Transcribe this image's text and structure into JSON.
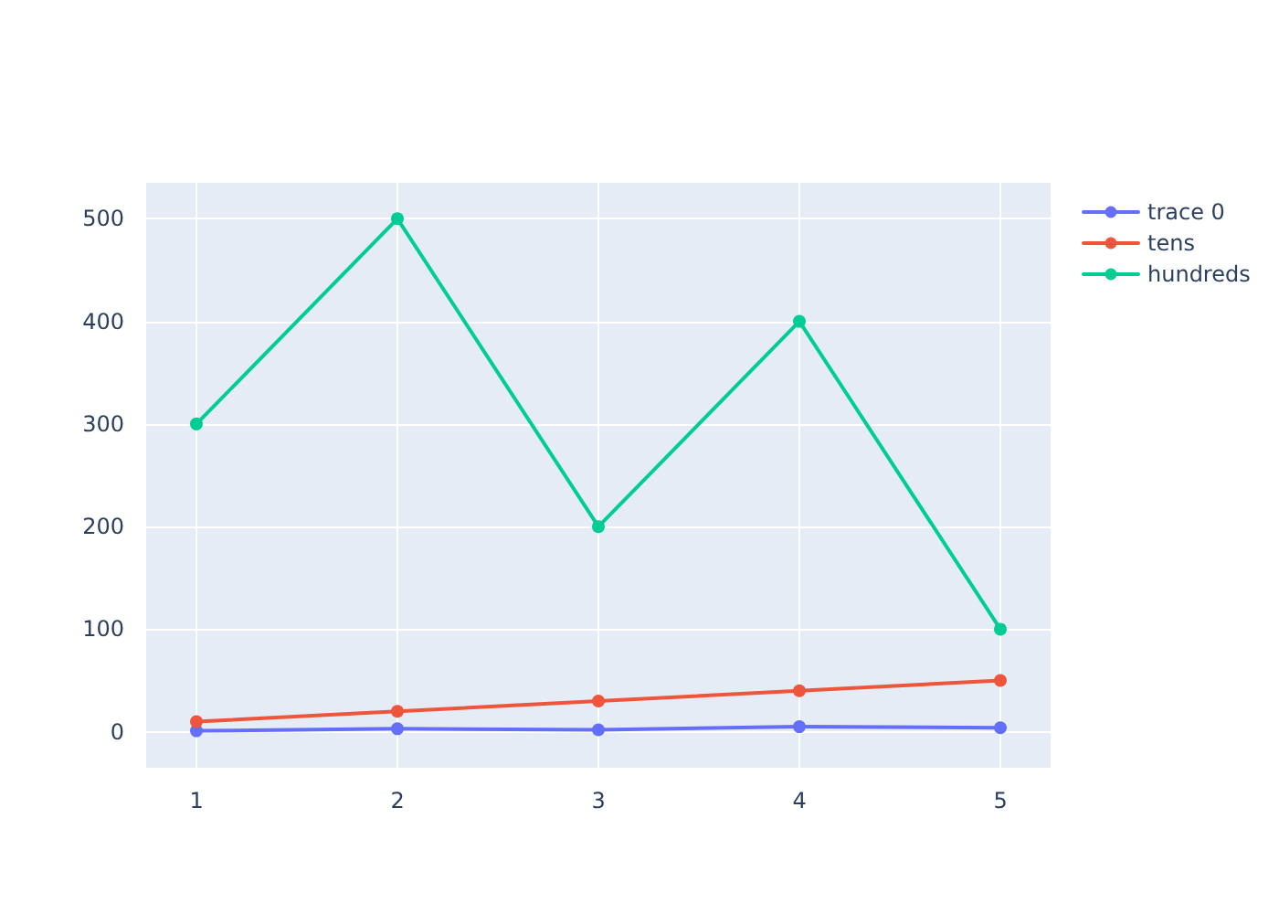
{
  "chart_data": {
    "type": "line",
    "x": [
      1,
      2,
      3,
      4,
      5
    ],
    "series": [
      {
        "name": "trace 0",
        "color": "#636efa",
        "values": [
          1,
          3,
          2,
          5,
          4
        ]
      },
      {
        "name": "tens",
        "color": "#ef553b",
        "values": [
          10,
          20,
          30,
          40,
          50
        ]
      },
      {
        "name": "hundreds",
        "color": "#00cc96",
        "values": [
          300,
          500,
          200,
          400,
          100
        ]
      }
    ],
    "xlim": [
      0.75,
      5.25
    ],
    "xticks": [
      1,
      2,
      3,
      4,
      5
    ],
    "ylim": [
      -35,
      535
    ],
    "yticks": [
      0,
      100,
      200,
      300,
      400,
      500
    ],
    "grid": true,
    "legend": "top right",
    "marker": "circle",
    "line_style": "solid"
  }
}
